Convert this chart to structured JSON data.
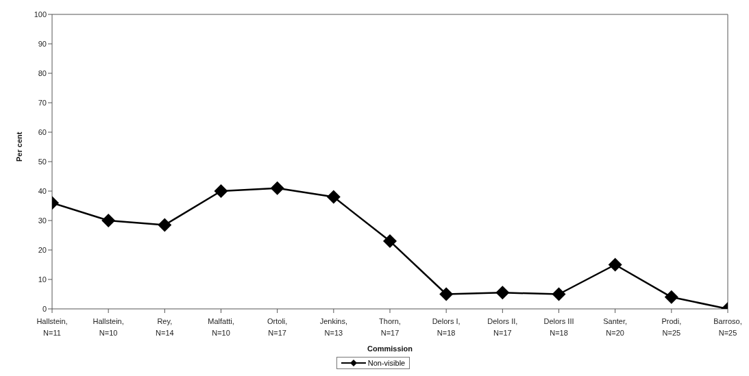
{
  "chart_data": {
    "type": "line",
    "xlabel": "Commission",
    "ylabel": "Per cent",
    "categories": [
      "Hallstein, N=11",
      "Hallstein, N=10",
      "Rey, N=14",
      "Malfatti, N=10",
      "Ortoli, N=17",
      "Jenkins, N=13",
      "Thorn, N=17",
      "Delors I, N=18",
      "Delors II, N=17",
      "Delors III N=18",
      "Santer, N=20",
      "Prodi, N=25",
      "Barroso, N=25"
    ],
    "series": [
      {
        "name": "Non-visible",
        "color": "#000000",
        "values": [
          36,
          30,
          28.5,
          40,
          41,
          38,
          23,
          5,
          5.5,
          5,
          15,
          4,
          0
        ]
      }
    ],
    "ylim": [
      0,
      100
    ],
    "yticks": [
      0,
      10,
      20,
      30,
      40,
      50,
      60,
      70,
      80,
      90,
      100
    ],
    "grid": false,
    "legend": "bottom",
    "marker": "diamond",
    "line_style": "solid"
  }
}
